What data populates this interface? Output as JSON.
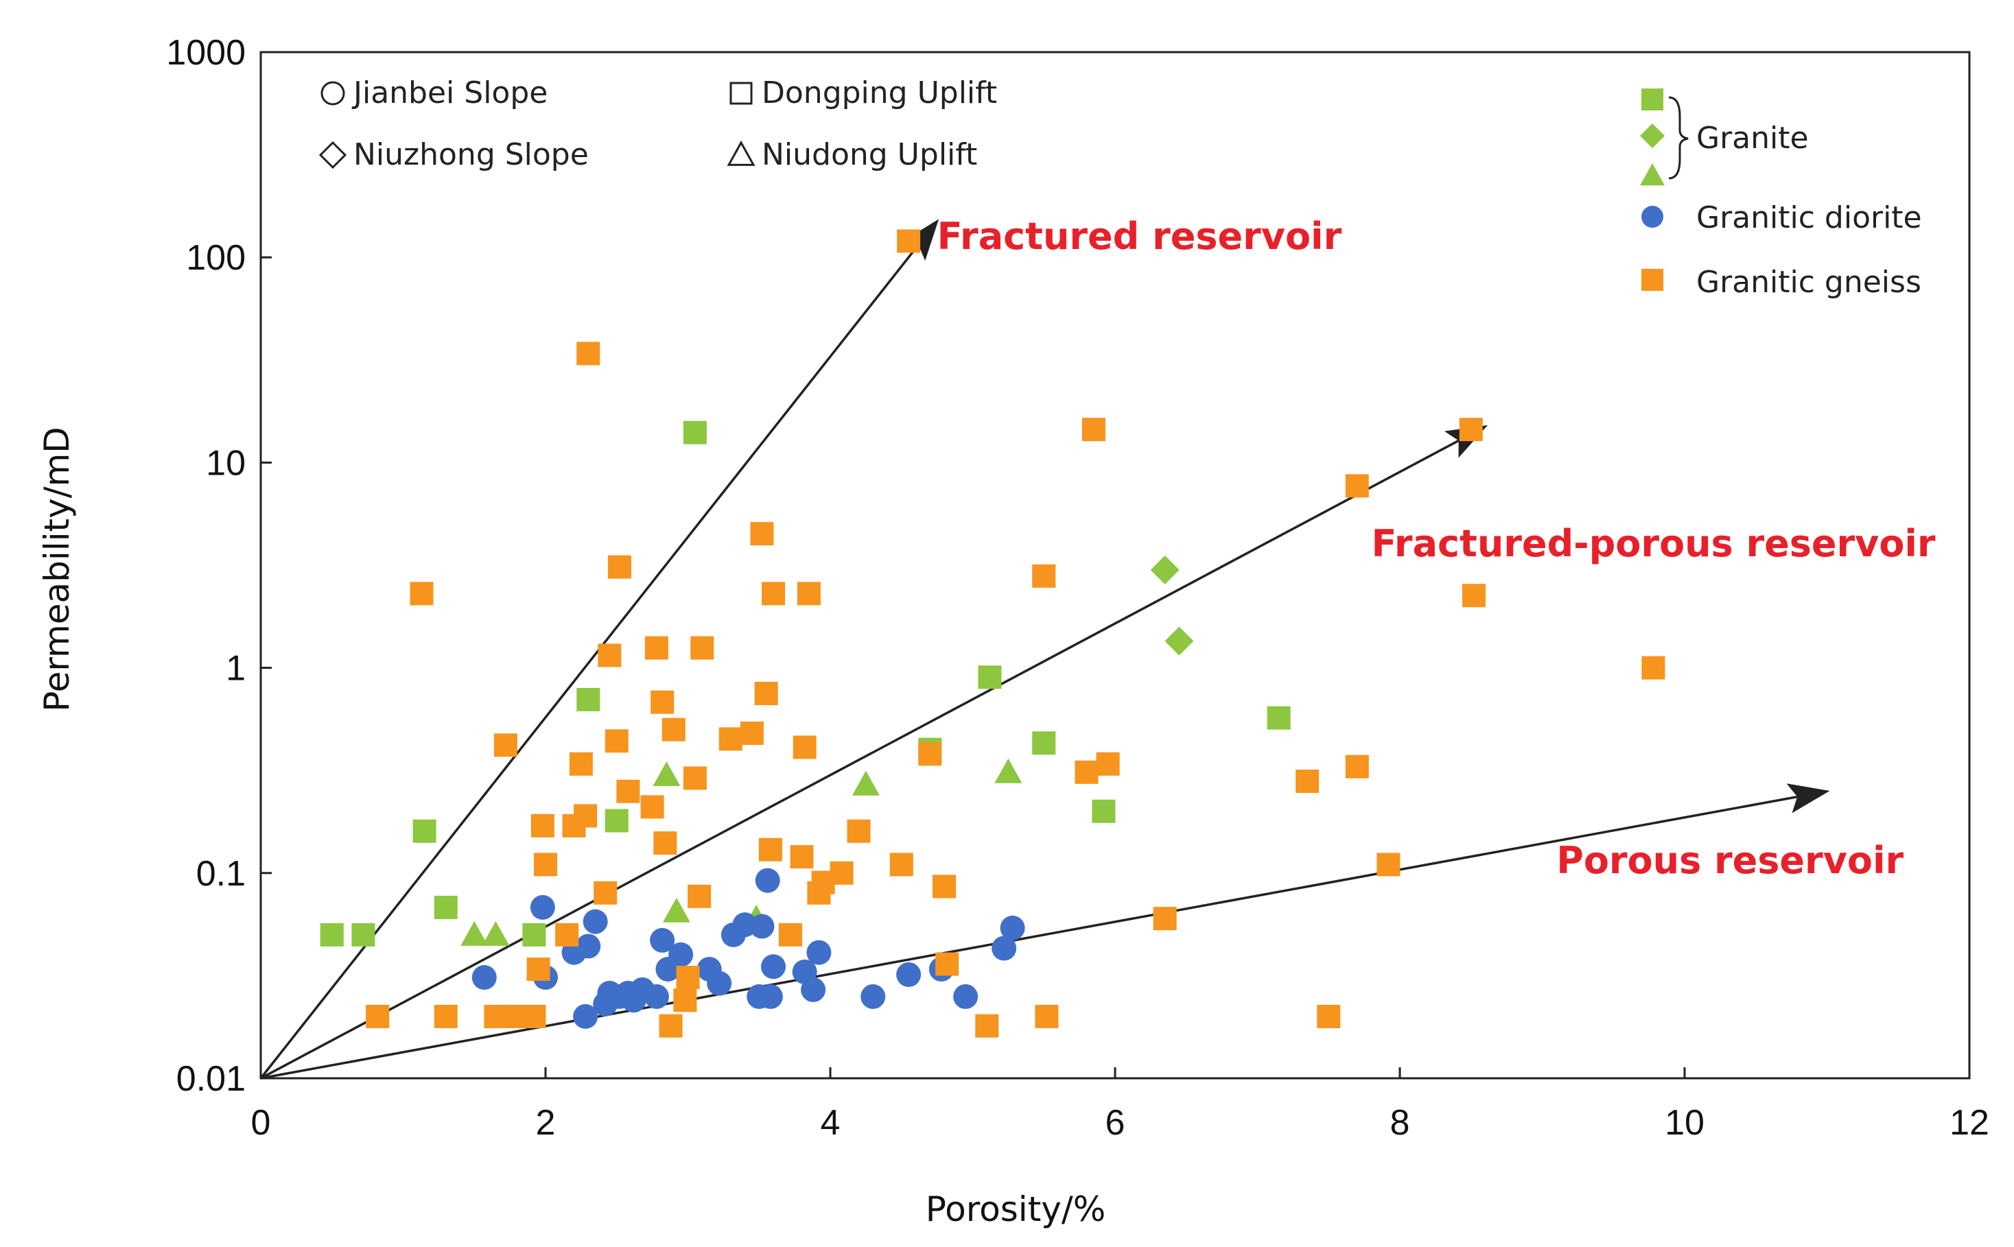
{
  "chart_data": {
    "type": "scatter",
    "xlabel": "Porosity/%",
    "ylabel": "Permeability/mD",
    "xlim": [
      0,
      12
    ],
    "ylim": [
      0.01,
      1000
    ],
    "yscale": "log",
    "x_ticks": [
      "0",
      "2",
      "4",
      "6",
      "8",
      "10",
      "12"
    ],
    "y_ticks": [
      "0.01",
      "0.1",
      "1",
      "10",
      "100",
      "1000"
    ],
    "grid": false,
    "legend_placement": "top-right",
    "region_legend": [
      {
        "label": "Jianbei Slope",
        "symbol": "circle"
      },
      {
        "label": "Dongping Uplift",
        "symbol": "square"
      },
      {
        "label": "Niuzhong Slope",
        "symbol": "diamond"
      },
      {
        "label": "Niudong Uplift",
        "symbol": "triangle"
      }
    ],
    "lithology_legend": {
      "granite_label": "Granite",
      "diorite_label": "Granitic diorite",
      "gneiss_label": "Granitic gneiss"
    },
    "colors": {
      "granite": "#8dc63f",
      "diorite": "#3f6fc8",
      "gneiss": "#f7941d",
      "annotation": "#e8202a",
      "arrow": "#222222"
    },
    "annotations": [
      {
        "text": "Fractured reservoir",
        "x": 4.75,
        "y": 110
      },
      {
        "text": "Fractured-porous reservoir",
        "x": 7.8,
        "y": 3.5
      },
      {
        "text": "Porous reservoir",
        "x": 9.1,
        "y": 0.1
      }
    ],
    "arrows": [
      {
        "from": [
          0,
          0.01
        ],
        "to": [
          4.75,
          150
        ]
      },
      {
        "from": [
          0,
          0.01
        ],
        "to": [
          8.6,
          15
        ]
      },
      {
        "from": [
          0,
          0.01
        ],
        "to": [
          11.0,
          0.25
        ]
      }
    ],
    "series": [
      {
        "name": "Granite",
        "lithology": "granite",
        "region": "Dongping Uplift",
        "marker": "square",
        "points": [
          [
            0.5,
            0.05
          ],
          [
            0.72,
            0.05
          ],
          [
            1.15,
            0.16
          ],
          [
            1.3,
            0.068
          ],
          [
            1.92,
            0.05
          ],
          [
            2.3,
            0.7
          ],
          [
            2.5,
            0.18
          ],
          [
            3.05,
            14
          ],
          [
            4.7,
            0.4
          ],
          [
            5.12,
            0.9
          ],
          [
            5.5,
            0.43
          ],
          [
            5.92,
            0.2
          ],
          [
            7.15,
            0.57
          ]
        ]
      },
      {
        "name": "Granite",
        "lithology": "granite",
        "region": "Niuzhong Slope",
        "marker": "diamond",
        "points": [
          [
            6.35,
            3
          ],
          [
            6.45,
            1.35
          ]
        ]
      },
      {
        "name": "Granite",
        "lithology": "granite",
        "region": "Niudong Uplift",
        "marker": "triangle",
        "points": [
          [
            1.5,
            0.05
          ],
          [
            1.65,
            0.05
          ],
          [
            2.85,
            0.3
          ],
          [
            2.92,
            0.065
          ],
          [
            3.48,
            0.06
          ],
          [
            4.25,
            0.27
          ],
          [
            5.25,
            0.31
          ]
        ]
      },
      {
        "name": "Granitic diorite",
        "lithology": "diorite",
        "region": "Jianbei Slope",
        "marker": "circle",
        "points": [
          [
            1.57,
            0.031
          ],
          [
            1.98,
            0.068
          ],
          [
            2.0,
            0.031
          ],
          [
            2.2,
            0.041
          ],
          [
            2.28,
            0.02
          ],
          [
            2.3,
            0.044
          ],
          [
            2.35,
            0.058
          ],
          [
            2.42,
            0.023
          ],
          [
            2.45,
            0.026
          ],
          [
            2.52,
            0.025
          ],
          [
            2.58,
            0.026
          ],
          [
            2.62,
            0.024
          ],
          [
            2.68,
            0.027
          ],
          [
            2.78,
            0.025
          ],
          [
            2.82,
            0.047
          ],
          [
            2.86,
            0.034
          ],
          [
            2.95,
            0.04
          ],
          [
            3.15,
            0.034
          ],
          [
            3.22,
            0.029
          ],
          [
            3.32,
            0.05
          ],
          [
            3.4,
            0.056
          ],
          [
            3.5,
            0.025
          ],
          [
            3.52,
            0.055
          ],
          [
            3.56,
            0.092
          ],
          [
            3.58,
            0.025
          ],
          [
            3.6,
            0.035
          ],
          [
            3.82,
            0.033
          ],
          [
            3.88,
            0.027
          ],
          [
            3.92,
            0.041
          ],
          [
            4.3,
            0.025
          ],
          [
            4.55,
            0.032
          ],
          [
            4.78,
            0.034
          ],
          [
            4.95,
            0.025
          ],
          [
            5.22,
            0.043
          ],
          [
            5.28,
            0.054
          ]
        ]
      },
      {
        "name": "Granitic gneiss",
        "lithology": "gneiss",
        "region": "Dongping Uplift",
        "marker": "square",
        "points": [
          [
            0.82,
            0.02
          ],
          [
            1.13,
            2.3
          ],
          [
            1.3,
            0.02
          ],
          [
            1.65,
            0.02
          ],
          [
            1.72,
            0.42
          ],
          [
            1.8,
            0.02
          ],
          [
            1.92,
            0.02
          ],
          [
            1.95,
            0.034
          ],
          [
            1.98,
            0.17
          ],
          [
            2.0,
            0.11
          ],
          [
            2.15,
            0.05
          ],
          [
            2.2,
            0.17
          ],
          [
            2.25,
            0.34
          ],
          [
            2.28,
            0.19
          ],
          [
            2.3,
            34
          ],
          [
            2.42,
            0.08
          ],
          [
            2.45,
            1.15
          ],
          [
            2.5,
            0.44
          ],
          [
            2.52,
            3.1
          ],
          [
            2.58,
            0.25
          ],
          [
            2.75,
            0.21
          ],
          [
            2.78,
            1.25
          ],
          [
            2.82,
            0.68
          ],
          [
            2.84,
            0.14
          ],
          [
            2.88,
            0.018
          ],
          [
            2.9,
            0.5
          ],
          [
            2.98,
            0.024
          ],
          [
            3.0,
            0.031
          ],
          [
            3.05,
            0.29
          ],
          [
            3.08,
            0.077
          ],
          [
            3.1,
            1.25
          ],
          [
            3.3,
            0.45
          ],
          [
            3.45,
            0.48
          ],
          [
            3.52,
            4.5
          ],
          [
            3.55,
            0.75
          ],
          [
            3.58,
            0.13
          ],
          [
            3.6,
            2.3
          ],
          [
            3.72,
            0.05
          ],
          [
            3.8,
            0.12
          ],
          [
            3.82,
            0.41
          ],
          [
            3.85,
            2.3
          ],
          [
            3.92,
            0.08
          ],
          [
            3.95,
            0.09
          ],
          [
            4.08,
            0.1
          ],
          [
            4.2,
            0.16
          ],
          [
            4.5,
            0.11
          ],
          [
            4.55,
            120
          ],
          [
            4.7,
            0.38
          ],
          [
            4.8,
            0.086
          ],
          [
            4.82,
            0.036
          ],
          [
            5.1,
            0.018
          ],
          [
            5.5,
            2.8
          ],
          [
            5.52,
            0.02
          ],
          [
            5.8,
            0.31
          ],
          [
            5.85,
            14.5
          ],
          [
            5.95,
            0.34
          ],
          [
            6.35,
            0.06
          ],
          [
            7.35,
            0.28
          ],
          [
            7.5,
            0.02
          ],
          [
            7.7,
            0.33
          ],
          [
            7.7,
            7.7
          ],
          [
            7.92,
            0.11
          ],
          [
            8.5,
            14.5
          ],
          [
            8.52,
            2.25
          ],
          [
            9.78,
            1.0
          ]
        ]
      }
    ]
  }
}
